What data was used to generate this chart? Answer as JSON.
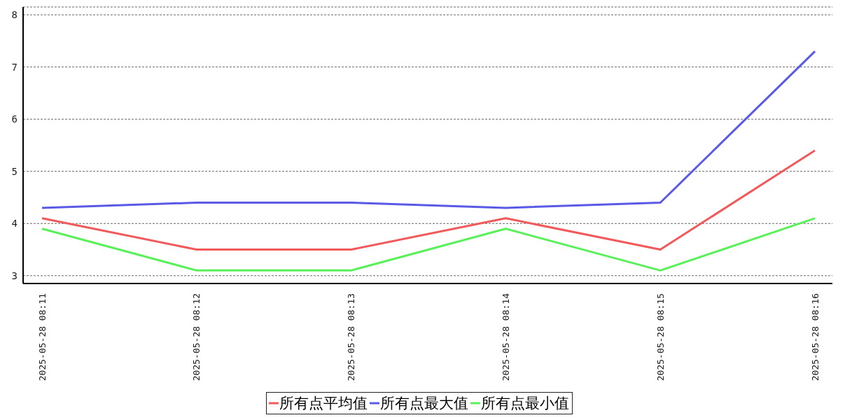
{
  "chart_data": {
    "type": "line",
    "categories": [
      "2025-05-28 08:11",
      "2025-05-28 08:12",
      "2025-05-28 08:13",
      "2025-05-28 08:14",
      "2025-05-28 08:15",
      "2025-05-28 08:16"
    ],
    "series": [
      {
        "name": "所有点平均值",
        "color": "#f05a5a",
        "values": [
          4.1,
          3.5,
          3.5,
          4.1,
          3.5,
          5.4
        ]
      },
      {
        "name": "所有点最大值",
        "color": "#5a5ae6",
        "values": [
          4.3,
          4.4,
          4.4,
          4.3,
          4.4,
          7.3
        ]
      },
      {
        "name": "所有点最小值",
        "color": "#5af05a",
        "values": [
          3.9,
          3.1,
          3.1,
          3.9,
          3.1,
          4.1
        ]
      }
    ],
    "ylim": [
      2.85,
      8.15
    ],
    "yticks": [
      3,
      4,
      5,
      6,
      7,
      8
    ],
    "grid": "y",
    "legend": "bottom",
    "marker": "none",
    "line_style": "solid"
  }
}
